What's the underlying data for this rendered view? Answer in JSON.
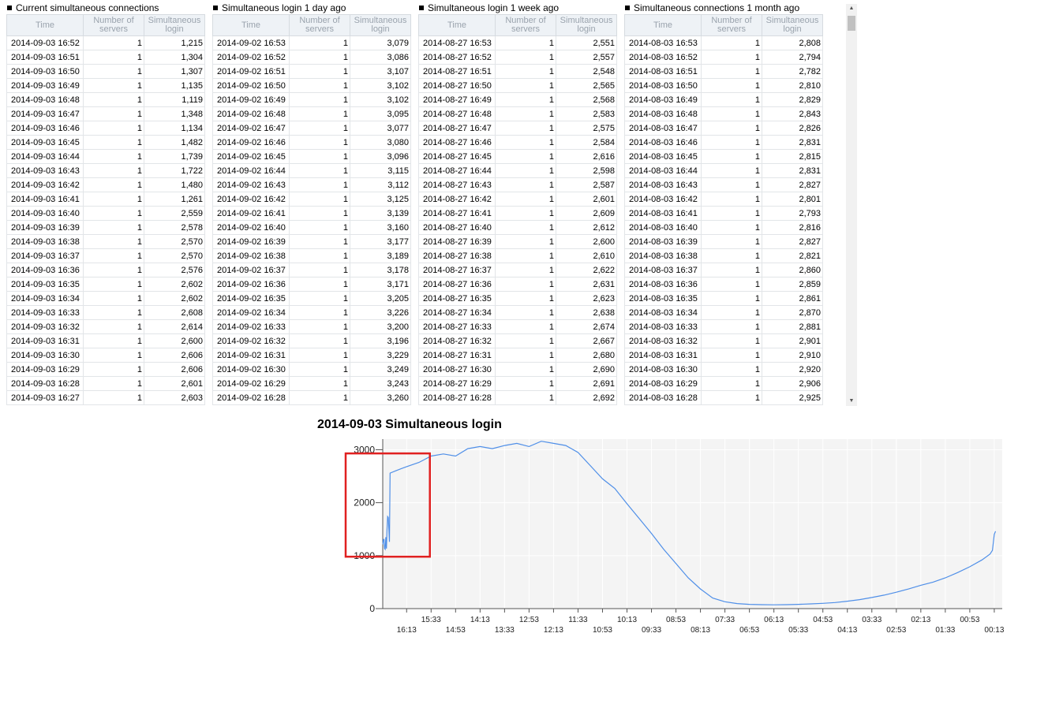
{
  "headers": {
    "time": "Time",
    "servers": "Number of servers",
    "login": "Simultaneous login"
  },
  "panels": [
    {
      "title": "Current simultaneous connections",
      "rows": [
        [
          "2014-09-03 16:52",
          "1",
          "1,215"
        ],
        [
          "2014-09-03 16:51",
          "1",
          "1,304"
        ],
        [
          "2014-09-03 16:50",
          "1",
          "1,307"
        ],
        [
          "2014-09-03 16:49",
          "1",
          "1,135"
        ],
        [
          "2014-09-03 16:48",
          "1",
          "1,119"
        ],
        [
          "2014-09-03 16:47",
          "1",
          "1,348"
        ],
        [
          "2014-09-03 16:46",
          "1",
          "1,134"
        ],
        [
          "2014-09-03 16:45",
          "1",
          "1,482"
        ],
        [
          "2014-09-03 16:44",
          "1",
          "1,739"
        ],
        [
          "2014-09-03 16:43",
          "1",
          "1,722"
        ],
        [
          "2014-09-03 16:42",
          "1",
          "1,480"
        ],
        [
          "2014-09-03 16:41",
          "1",
          "1,261"
        ],
        [
          "2014-09-03 16:40",
          "1",
          "2,559"
        ],
        [
          "2014-09-03 16:39",
          "1",
          "2,578"
        ],
        [
          "2014-09-03 16:38",
          "1",
          "2,570"
        ],
        [
          "2014-09-03 16:37",
          "1",
          "2,570"
        ],
        [
          "2014-09-03 16:36",
          "1",
          "2,576"
        ],
        [
          "2014-09-03 16:35",
          "1",
          "2,602"
        ],
        [
          "2014-09-03 16:34",
          "1",
          "2,602"
        ],
        [
          "2014-09-03 16:33",
          "1",
          "2,608"
        ],
        [
          "2014-09-03 16:32",
          "1",
          "2,614"
        ],
        [
          "2014-09-03 16:31",
          "1",
          "2,600"
        ],
        [
          "2014-09-03 16:30",
          "1",
          "2,606"
        ],
        [
          "2014-09-03 16:29",
          "1",
          "2,606"
        ],
        [
          "2014-09-03 16:28",
          "1",
          "2,601"
        ],
        [
          "2014-09-03 16:27",
          "1",
          "2,603"
        ]
      ]
    },
    {
      "title": "Simultaneous login 1 day ago",
      "rows": [
        [
          "2014-09-02 16:53",
          "1",
          "3,079"
        ],
        [
          "2014-09-02 16:52",
          "1",
          "3,086"
        ],
        [
          "2014-09-02 16:51",
          "1",
          "3,107"
        ],
        [
          "2014-09-02 16:50",
          "1",
          "3,102"
        ],
        [
          "2014-09-02 16:49",
          "1",
          "3,102"
        ],
        [
          "2014-09-02 16:48",
          "1",
          "3,095"
        ],
        [
          "2014-09-02 16:47",
          "1",
          "3,077"
        ],
        [
          "2014-09-02 16:46",
          "1",
          "3,080"
        ],
        [
          "2014-09-02 16:45",
          "1",
          "3,096"
        ],
        [
          "2014-09-02 16:44",
          "1",
          "3,115"
        ],
        [
          "2014-09-02 16:43",
          "1",
          "3,112"
        ],
        [
          "2014-09-02 16:42",
          "1",
          "3,125"
        ],
        [
          "2014-09-02 16:41",
          "1",
          "3,139"
        ],
        [
          "2014-09-02 16:40",
          "1",
          "3,160"
        ],
        [
          "2014-09-02 16:39",
          "1",
          "3,177"
        ],
        [
          "2014-09-02 16:38",
          "1",
          "3,189"
        ],
        [
          "2014-09-02 16:37",
          "1",
          "3,178"
        ],
        [
          "2014-09-02 16:36",
          "1",
          "3,171"
        ],
        [
          "2014-09-02 16:35",
          "1",
          "3,205"
        ],
        [
          "2014-09-02 16:34",
          "1",
          "3,226"
        ],
        [
          "2014-09-02 16:33",
          "1",
          "3,200"
        ],
        [
          "2014-09-02 16:32",
          "1",
          "3,196"
        ],
        [
          "2014-09-02 16:31",
          "1",
          "3,229"
        ],
        [
          "2014-09-02 16:30",
          "1",
          "3,249"
        ],
        [
          "2014-09-02 16:29",
          "1",
          "3,243"
        ],
        [
          "2014-09-02 16:28",
          "1",
          "3,260"
        ]
      ]
    },
    {
      "title": "Simultaneous login 1 week ago",
      "rows": [
        [
          "2014-08-27 16:53",
          "1",
          "2,551"
        ],
        [
          "2014-08-27 16:52",
          "1",
          "2,557"
        ],
        [
          "2014-08-27 16:51",
          "1",
          "2,548"
        ],
        [
          "2014-08-27 16:50",
          "1",
          "2,565"
        ],
        [
          "2014-08-27 16:49",
          "1",
          "2,568"
        ],
        [
          "2014-08-27 16:48",
          "1",
          "2,583"
        ],
        [
          "2014-08-27 16:47",
          "1",
          "2,575"
        ],
        [
          "2014-08-27 16:46",
          "1",
          "2,584"
        ],
        [
          "2014-08-27 16:45",
          "1",
          "2,616"
        ],
        [
          "2014-08-27 16:44",
          "1",
          "2,598"
        ],
        [
          "2014-08-27 16:43",
          "1",
          "2,587"
        ],
        [
          "2014-08-27 16:42",
          "1",
          "2,601"
        ],
        [
          "2014-08-27 16:41",
          "1",
          "2,609"
        ],
        [
          "2014-08-27 16:40",
          "1",
          "2,612"
        ],
        [
          "2014-08-27 16:39",
          "1",
          "2,600"
        ],
        [
          "2014-08-27 16:38",
          "1",
          "2,610"
        ],
        [
          "2014-08-27 16:37",
          "1",
          "2,622"
        ],
        [
          "2014-08-27 16:36",
          "1",
          "2,631"
        ],
        [
          "2014-08-27 16:35",
          "1",
          "2,623"
        ],
        [
          "2014-08-27 16:34",
          "1",
          "2,638"
        ],
        [
          "2014-08-27 16:33",
          "1",
          "2,674"
        ],
        [
          "2014-08-27 16:32",
          "1",
          "2,667"
        ],
        [
          "2014-08-27 16:31",
          "1",
          "2,680"
        ],
        [
          "2014-08-27 16:30",
          "1",
          "2,690"
        ],
        [
          "2014-08-27 16:29",
          "1",
          "2,691"
        ],
        [
          "2014-08-27 16:28",
          "1",
          "2,692"
        ]
      ]
    },
    {
      "title": "Simultaneous connections 1 month ago",
      "rows": [
        [
          "2014-08-03 16:53",
          "1",
          "2,808"
        ],
        [
          "2014-08-03 16:52",
          "1",
          "2,794"
        ],
        [
          "2014-08-03 16:51",
          "1",
          "2,782"
        ],
        [
          "2014-08-03 16:50",
          "1",
          "2,810"
        ],
        [
          "2014-08-03 16:49",
          "1",
          "2,829"
        ],
        [
          "2014-08-03 16:48",
          "1",
          "2,843"
        ],
        [
          "2014-08-03 16:47",
          "1",
          "2,826"
        ],
        [
          "2014-08-03 16:46",
          "1",
          "2,831"
        ],
        [
          "2014-08-03 16:45",
          "1",
          "2,815"
        ],
        [
          "2014-08-03 16:44",
          "1",
          "2,831"
        ],
        [
          "2014-08-03 16:43",
          "1",
          "2,827"
        ],
        [
          "2014-08-03 16:42",
          "1",
          "2,801"
        ],
        [
          "2014-08-03 16:41",
          "1",
          "2,793"
        ],
        [
          "2014-08-03 16:40",
          "1",
          "2,816"
        ],
        [
          "2014-08-03 16:39",
          "1",
          "2,827"
        ],
        [
          "2014-08-03 16:38",
          "1",
          "2,821"
        ],
        [
          "2014-08-03 16:37",
          "1",
          "2,860"
        ],
        [
          "2014-08-03 16:36",
          "1",
          "2,859"
        ],
        [
          "2014-08-03 16:35",
          "1",
          "2,861"
        ],
        [
          "2014-08-03 16:34",
          "1",
          "2,870"
        ],
        [
          "2014-08-03 16:33",
          "1",
          "2,881"
        ],
        [
          "2014-08-03 16:32",
          "1",
          "2,901"
        ],
        [
          "2014-08-03 16:31",
          "1",
          "2,910"
        ],
        [
          "2014-08-03 16:30",
          "1",
          "2,920"
        ],
        [
          "2014-08-03 16:29",
          "1",
          "2,906"
        ],
        [
          "2014-08-03 16:28",
          "1",
          "2,925"
        ]
      ]
    }
  ],
  "scrollbar": {
    "up_icon": "triangle-up-icon",
    "down_icon": "triangle-down-icon"
  },
  "chart_title": "2014-09-03 Simultaneous login",
  "chart_data": {
    "type": "line",
    "title": "2014-09-03 Simultaneous login",
    "xlabel": "",
    "ylabel": "",
    "ylim": [
      0,
      3200
    ],
    "yticks": [
      0,
      1000,
      2000,
      3000
    ],
    "x_direction": "time decreasing from left to right",
    "xticks_upper": [
      "15:33",
      "14:13",
      "12:53",
      "11:33",
      "10:13",
      "08:53",
      "07:33",
      "06:13",
      "04:53",
      "03:33",
      "02:13",
      "00:53"
    ],
    "xticks_lower": [
      "16:13",
      "14:53",
      "13:33",
      "12:13",
      "10:53",
      "09:33",
      "08:13",
      "06:53",
      "05:33",
      "04:13",
      "02:53",
      "01:33",
      "00:13"
    ],
    "series": [
      {
        "color": "#4f8fe8",
        "x": [
          "16:52",
          "16:51",
          "16:50",
          "16:49",
          "16:48",
          "16:47",
          "16:46",
          "16:45",
          "16:44",
          "16:43",
          "16:42",
          "16:41",
          "16:40",
          "16:30",
          "16:13",
          "15:53",
          "15:33",
          "15:13",
          "14:53",
          "14:33",
          "14:13",
          "13:53",
          "13:33",
          "13:13",
          "12:53",
          "12:33",
          "12:13",
          "11:53",
          "11:33",
          "11:13",
          "10:53",
          "10:33",
          "10:13",
          "09:53",
          "09:33",
          "09:13",
          "08:53",
          "08:33",
          "08:13",
          "07:53",
          "07:33",
          "07:13",
          "06:53",
          "06:33",
          "06:13",
          "05:53",
          "05:33",
          "05:13",
          "04:53",
          "04:33",
          "04:13",
          "03:53",
          "03:33",
          "03:13",
          "02:53",
          "02:33",
          "02:13",
          "01:53",
          "01:33",
          "01:13",
          "00:53",
          "00:33",
          "00:20",
          "00:16",
          "00:13",
          "00:11"
        ],
        "values": [
          1215,
          1304,
          1307,
          1135,
          1119,
          1348,
          1134,
          1482,
          1739,
          1722,
          1480,
          1261,
          2559,
          2606,
          2680,
          2760,
          2880,
          2920,
          2880,
          3020,
          3060,
          3020,
          3080,
          3120,
          3060,
          3160,
          3120,
          3080,
          2950,
          2700,
          2450,
          2270,
          1980,
          1700,
          1420,
          1120,
          850,
          580,
          370,
          200,
          130,
          95,
          80,
          75,
          72,
          75,
          80,
          90,
          100,
          115,
          140,
          170,
          210,
          255,
          310,
          370,
          440,
          500,
          580,
          680,
          790,
          920,
          1030,
          1100,
          1400,
          1460
        ]
      }
    ],
    "annotation": {
      "shape": "rectangle",
      "color": "#e02020",
      "x_from": "16:52",
      "x_to": "15:35",
      "y_from": 980,
      "y_to": 2930
    }
  }
}
